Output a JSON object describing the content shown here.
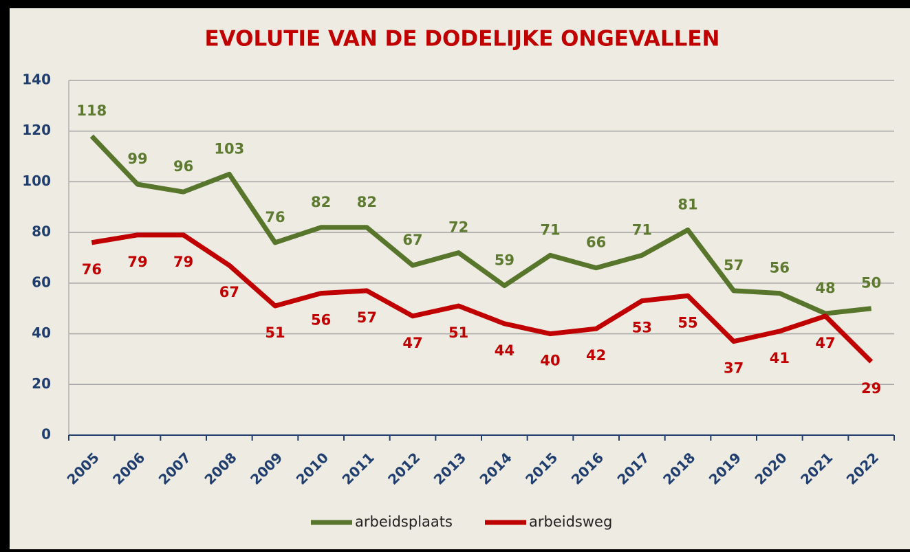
{
  "chart_data": {
    "type": "line",
    "title": "EVOLUTIE VAN DE DODELIJKE ONGEVALLEN",
    "categories": [
      "2005",
      "2006",
      "2007",
      "2008",
      "2009",
      "2010",
      "2011",
      "2012",
      "2013",
      "2014",
      "2015",
      "2016",
      "2017",
      "2018",
      "2019",
      "2020",
      "2021",
      "2022"
    ],
    "series": [
      {
        "name": "arbeidsplaats",
        "color": "#58752c",
        "values": [
          118,
          99,
          96,
          103,
          76,
          82,
          82,
          67,
          72,
          59,
          71,
          66,
          71,
          81,
          57,
          56,
          48,
          50
        ]
      },
      {
        "name": "arbeidsweg",
        "color": "#c00000",
        "values": [
          76,
          79,
          79,
          67,
          51,
          56,
          57,
          47,
          51,
          44,
          40,
          42,
          53,
          55,
          37,
          41,
          47,
          29
        ]
      }
    ],
    "ylim": [
      0,
      140
    ],
    "yticks": [
      0,
      20,
      40,
      60,
      80,
      100,
      120,
      140
    ],
    "grid": true,
    "legend": "bottom"
  }
}
